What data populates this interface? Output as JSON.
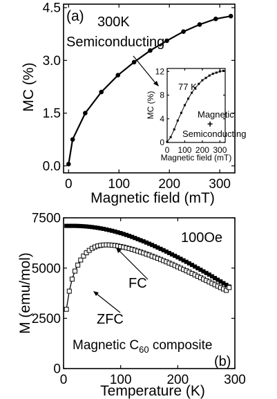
{
  "chart_data": [
    {
      "type": "line",
      "panel_label": "(a)",
      "annotations": [
        "300K",
        "Semiconducting"
      ],
      "xlabel": "Magnetic field (mT)",
      "ylabel": "MC (%)",
      "xlim": [
        -10,
        330
      ],
      "ylim": [
        -0.2,
        4.6
      ],
      "xticks": [
        0,
        100,
        200,
        300
      ],
      "xtick_labels": [
        "0",
        "100",
        "200",
        "300"
      ],
      "yticks": [
        0.0,
        1.5,
        3.0,
        4.5
      ],
      "ytick_labels": [
        "0.0",
        "1.5",
        "3.0",
        "4.5"
      ],
      "series": [
        {
          "marker": "filled-circle",
          "x": [
            0,
            8,
            33,
            65,
            98,
            130,
            162,
            195,
            228,
            260,
            292,
            322
          ],
          "y": [
            0.05,
            0.75,
            1.5,
            2.1,
            2.58,
            2.95,
            3.28,
            3.56,
            3.82,
            4.02,
            4.18,
            4.26
          ]
        }
      ],
      "inset": {
        "type": "line",
        "annotations": [
          "77 K",
          "Magnetic",
          "+",
          "Semiconducting"
        ],
        "xlabel": "Magnetic field (mT)",
        "ylabel": "MC (%)",
        "xlim": [
          0,
          330
        ],
        "ylim": [
          0,
          12.5
        ],
        "xticks": [
          0,
          100,
          200,
          300
        ],
        "xtick_labels": [
          "0",
          "100",
          "200",
          "300"
        ],
        "yticks": [
          0,
          4,
          8,
          12
        ],
        "ytick_labels": [
          "0",
          "4",
          "8",
          "12"
        ],
        "series": [
          {
            "marker": "filled-square",
            "x": [
              0,
              20,
              40,
              60,
              80,
              100,
              120,
              140,
              160,
              180,
              200,
              220,
              240,
              260,
              280,
              300,
              320
            ],
            "y": [
              0.1,
              0.9,
              2.2,
              3.7,
              5.0,
              6.3,
              7.4,
              8.4,
              9.2,
              9.9,
              10.5,
              10.9,
              11.3,
              11.6,
              11.8,
              12.0,
              12.1
            ]
          }
        ]
      }
    },
    {
      "type": "line",
      "panel_label": "(b)",
      "annotations": [
        "100Oe",
        "FC",
        "ZFC"
      ],
      "composite_label": {
        "before": "Magnetic C",
        "sub": "60",
        "after": " composite"
      },
      "xlabel": "Temperature (K)",
      "ylabel": "M (emu/mol)",
      "xlim": [
        0,
        300
      ],
      "ylim": [
        0,
        7500
      ],
      "xticks": [
        0,
        100,
        200,
        300
      ],
      "xtick_labels": [
        "0",
        "100",
        "200",
        "300"
      ],
      "yticks": [
        0,
        2500,
        5000,
        7500
      ],
      "ytick_labels": [
        "0",
        "2500",
        "5000",
        "7500"
      ],
      "series": [
        {
          "name": "FC",
          "marker": "filled-square",
          "x": [
            5,
            10,
            15,
            20,
            25,
            30,
            35,
            40,
            45,
            50,
            55,
            60,
            65,
            70,
            75,
            80,
            85,
            90,
            95,
            100,
            105,
            110,
            115,
            120,
            125,
            130,
            135,
            140,
            145,
            150,
            155,
            160,
            165,
            170,
            175,
            180,
            185,
            190,
            195,
            200,
            205,
            210,
            215,
            220,
            225,
            230,
            235,
            240,
            245,
            250,
            255,
            260,
            265,
            270,
            275,
            280,
            285,
            290
          ],
          "y": [
            7100,
            7100,
            7100,
            7100,
            7095,
            7090,
            7080,
            7070,
            7055,
            7040,
            7020,
            7000,
            6975,
            6950,
            6920,
            6890,
            6855,
            6820,
            6780,
            6740,
            6695,
            6650,
            6600,
            6550,
            6495,
            6440,
            6385,
            6330,
            6270,
            6210,
            6150,
            6085,
            6020,
            5955,
            5890,
            5820,
            5750,
            5680,
            5610,
            5535,
            5460,
            5385,
            5310,
            5235,
            5155,
            5075,
            4995,
            4915,
            4835,
            4755,
            4675,
            4590,
            4505,
            4420,
            4335,
            4250,
            4165,
            4080
          ]
        },
        {
          "name": "ZFC",
          "marker": "open-square",
          "x": [
            5,
            10,
            15,
            20,
            25,
            30,
            35,
            40,
            45,
            50,
            55,
            60,
            65,
            70,
            75,
            80,
            85,
            90,
            95,
            100,
            105,
            110,
            115,
            120,
            125,
            130,
            135,
            140,
            145,
            150,
            155,
            160,
            165,
            170,
            175,
            180,
            185,
            190,
            195,
            200,
            205,
            210,
            215,
            220,
            225,
            230,
            235,
            240,
            245,
            250,
            255,
            260,
            265,
            270,
            275,
            280,
            285,
            290
          ],
          "y": [
            2950,
            3850,
            4450,
            4850,
            5150,
            5400,
            5600,
            5760,
            5880,
            5980,
            6050,
            6100,
            6130,
            6150,
            6155,
            6150,
            6140,
            6125,
            6100,
            6075,
            6045,
            6010,
            5975,
            5935,
            5890,
            5845,
            5800,
            5750,
            5700,
            5650,
            5595,
            5540,
            5485,
            5430,
            5370,
            5310,
            5250,
            5190,
            5125,
            5060,
            4995,
            4930,
            4865,
            4800,
            4730,
            4660,
            4590,
            4520,
            4450,
            4380,
            4310,
            4240,
            4170,
            4100,
            4030,
            3960,
            3890,
            4030
          ]
        }
      ]
    }
  ]
}
